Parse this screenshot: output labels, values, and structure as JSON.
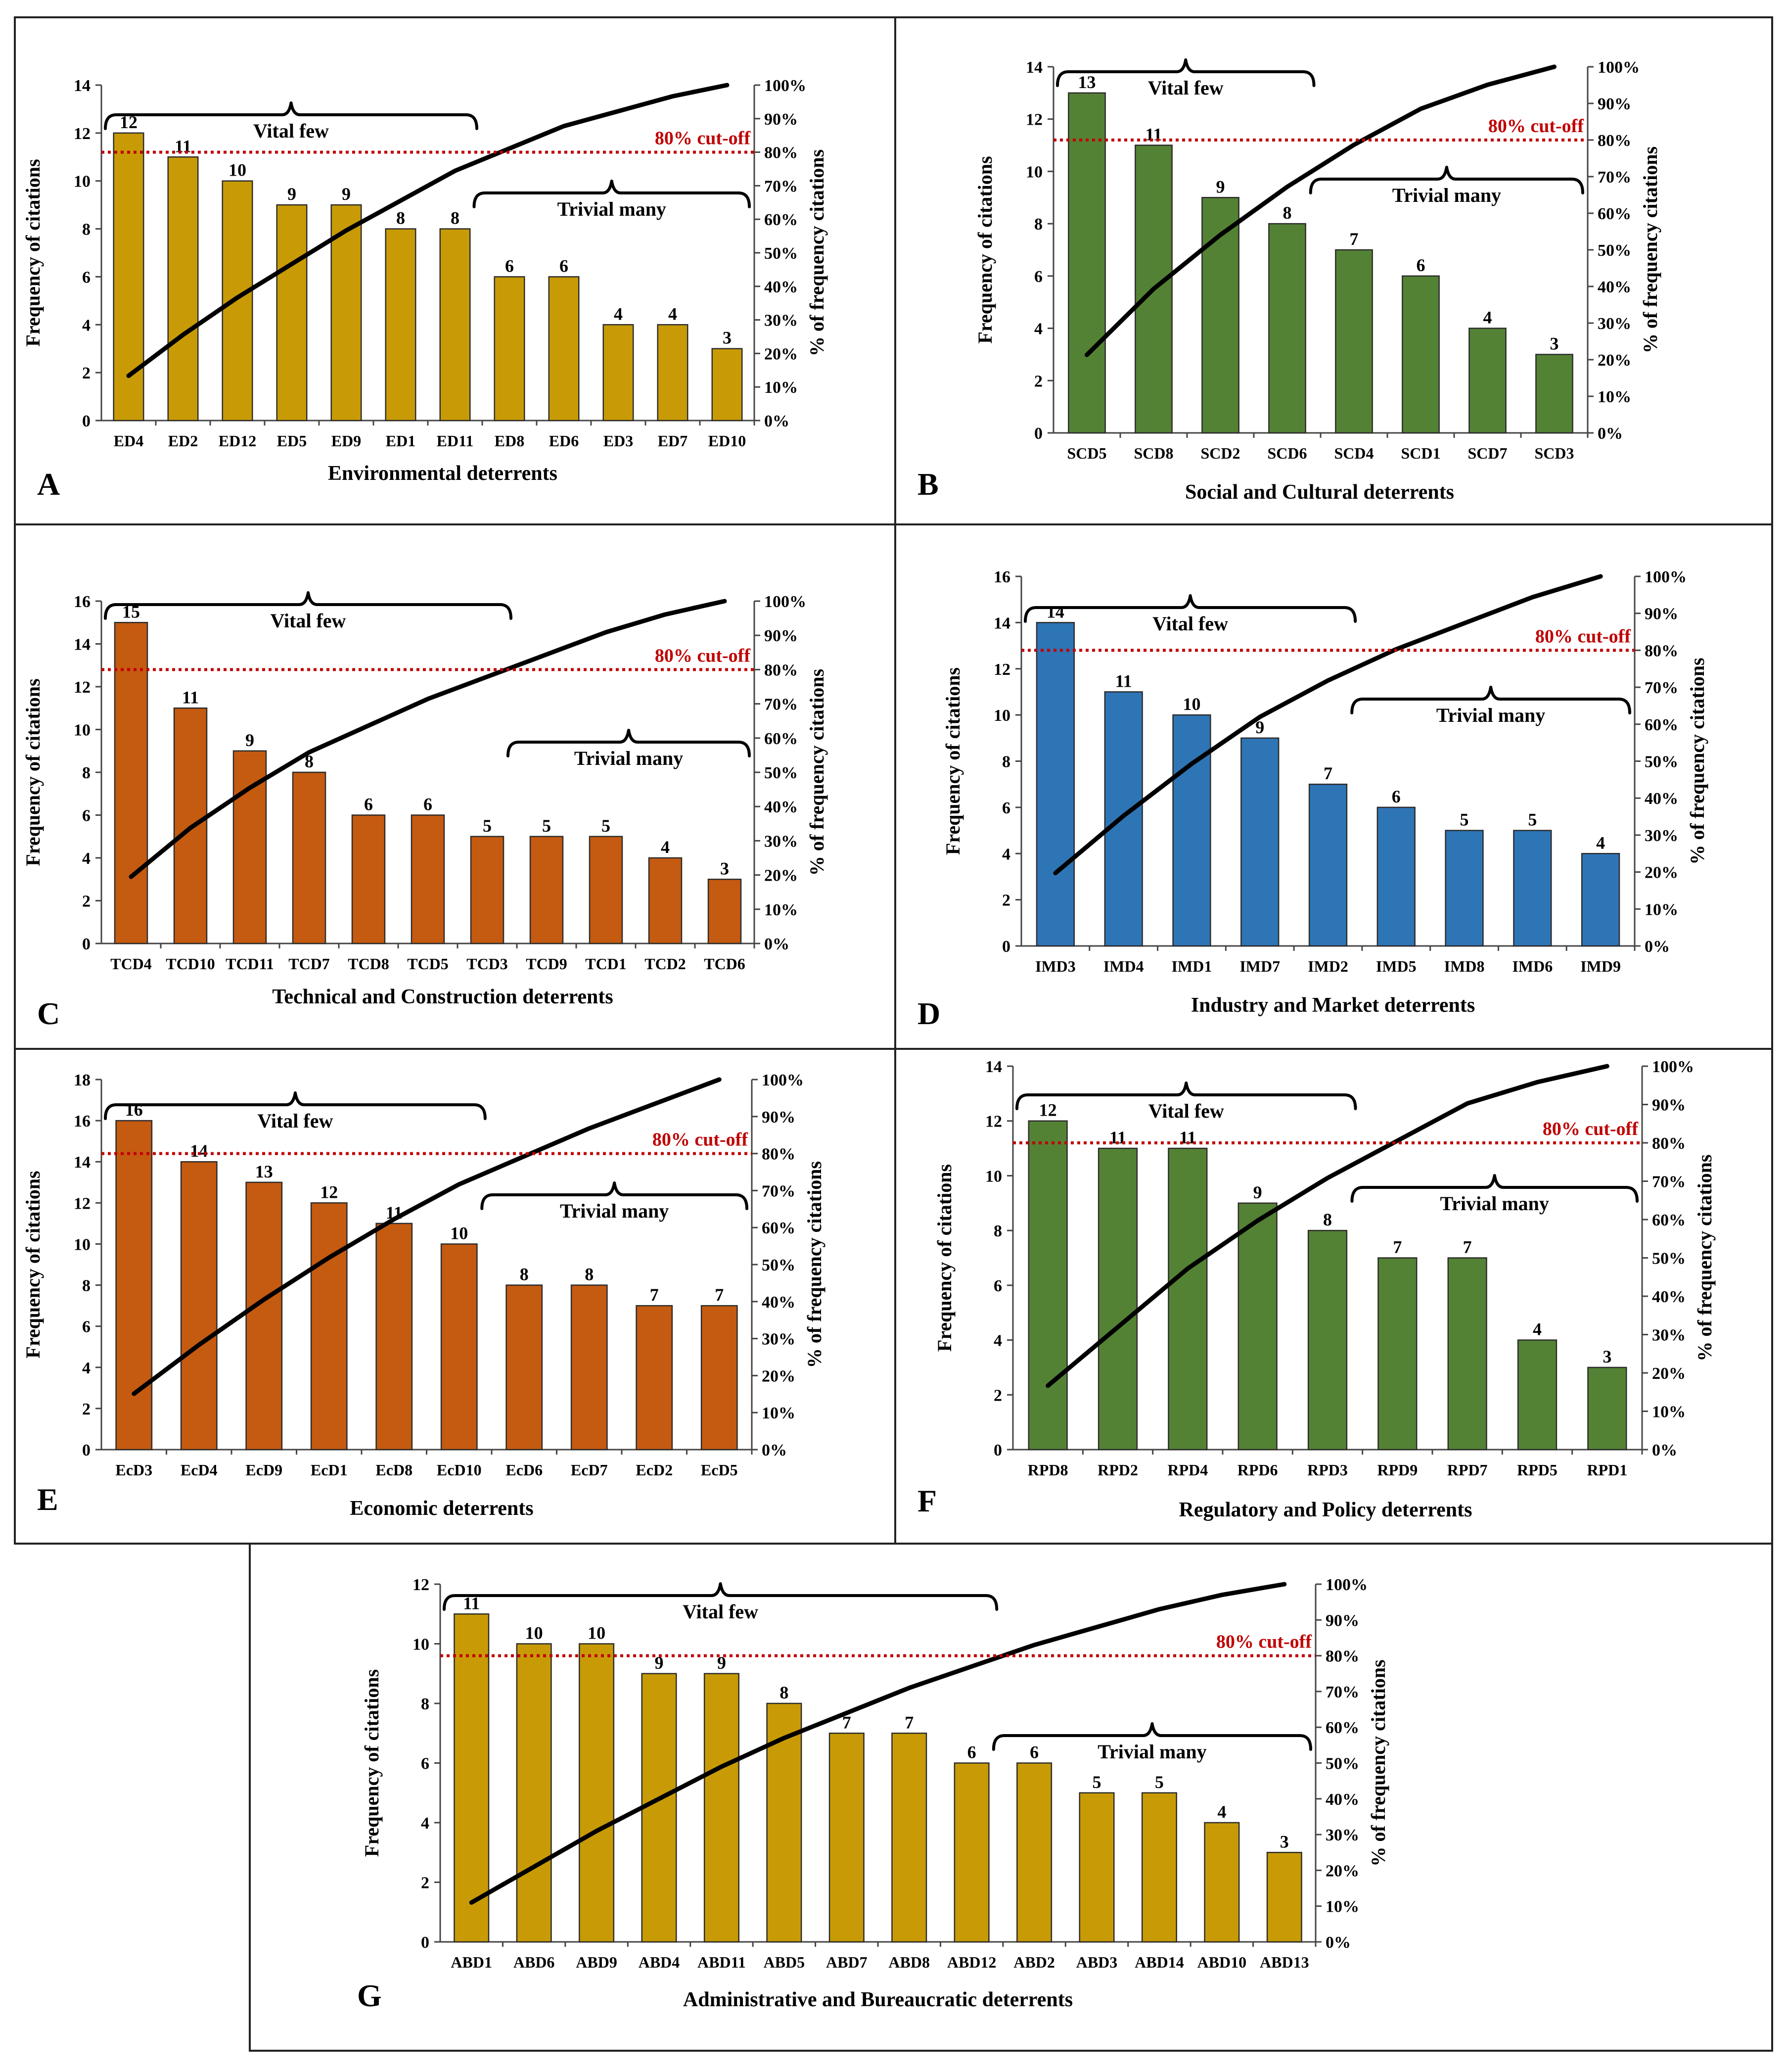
{
  "colors": {
    "gold": "#C89B06",
    "green": "#548235",
    "orange": "#C55A11",
    "blue": "#2E75B6",
    "cutoff": "#C00000"
  },
  "chart_data": [
    {
      "type": "bar",
      "panel_letter": "A",
      "title": "",
      "xlabel": "Environmental deterrents",
      "ylabel": "Frequency of citations",
      "y2label": "% of frequency citations",
      "categories": [
        "ED4",
        "ED2",
        "ED12",
        "ED5",
        "ED9",
        "ED1",
        "ED11",
        "ED8",
        "ED6",
        "ED3",
        "ED7",
        "ED10"
      ],
      "values": [
        12,
        11,
        10,
        9,
        9,
        8,
        8,
        6,
        6,
        4,
        4,
        3
      ],
      "value_labels": [
        "12",
        "11",
        "10",
        "9",
        "9",
        "8",
        "8",
        "6",
        "6",
        "4",
        "4",
        "3"
      ],
      "ylim": [
        0,
        14
      ],
      "yticks": [
        "0",
        "2",
        "4",
        "6",
        "8",
        "10",
        "12",
        "14"
      ],
      "y2ticks": [
        "0%",
        "10%",
        "20%",
        "30%",
        "40%",
        "50%",
        "60%",
        "70%",
        "80%",
        "90%",
        "100%"
      ],
      "cutoff_label": "80% cut-off",
      "cutoff_value": 80,
      "vital_label": "Vital few",
      "trivial_label": "Trivial many",
      "vital_span": [
        0,
        6
      ],
      "trivial_span": [
        7,
        11
      ],
      "color": "gold"
    },
    {
      "type": "bar",
      "panel_letter": "B",
      "title": "",
      "xlabel": "Social and Cultural deterrents",
      "ylabel": "Frequency of citations",
      "y2label": "% of frequency citations",
      "categories": [
        "SCD5",
        "SCD8",
        "SCD2",
        "SCD6",
        "SCD4",
        "SCD1",
        "SCD7",
        "SCD3"
      ],
      "values": [
        13,
        11,
        9,
        8,
        7,
        6,
        4,
        3
      ],
      "value_labels": [
        "13",
        "11",
        "9",
        "8",
        "7",
        "6",
        "4",
        "3"
      ],
      "ylim": [
        0,
        14
      ],
      "yticks": [
        "0",
        "2",
        "4",
        "6",
        "8",
        "10",
        "12",
        "14"
      ],
      "y2ticks": [
        "0%",
        "10%",
        "20%",
        "30%",
        "40%",
        "50%",
        "60%",
        "70%",
        "80%",
        "90%",
        "100%"
      ],
      "cutoff_label": "80% cut-off",
      "cutoff_value": 80,
      "vital_label": "Vital few",
      "trivial_label": "Trivial many",
      "vital_span": [
        0,
        3
      ],
      "trivial_span": [
        4,
        7
      ],
      "color": "green"
    },
    {
      "type": "bar",
      "panel_letter": "C",
      "title": "",
      "xlabel": "Technical and Construction deterrents",
      "ylabel": "Frequency of citations",
      "y2label": "% of frequency citations",
      "categories": [
        "TCD4",
        "TCD10",
        "TCD11",
        "TCD7",
        "TCD8",
        "TCD5",
        "TCD3",
        "TCD9",
        "TCD1",
        "TCD2",
        "TCD6"
      ],
      "values": [
        15,
        11,
        9,
        8,
        6,
        6,
        5,
        5,
        5,
        4,
        3
      ],
      "value_labels": [
        "15",
        "11",
        "9",
        "8",
        "6",
        "6",
        "5",
        "5",
        "5",
        "4",
        "3"
      ],
      "ylim": [
        0,
        16
      ],
      "yticks": [
        "0",
        "2",
        "4",
        "6",
        "8",
        "10",
        "12",
        "14",
        "16"
      ],
      "y2ticks": [
        "0%",
        "10%",
        "20%",
        "30%",
        "40%",
        "50%",
        "60%",
        "70%",
        "80%",
        "90%",
        "100%"
      ],
      "cutoff_label": "80% cut-off",
      "cutoff_value": 80,
      "vital_label": "Vital few",
      "trivial_label": "Trivial many",
      "vital_span": [
        0,
        6
      ],
      "trivial_span": [
        7,
        10
      ],
      "color": "orange"
    },
    {
      "type": "bar",
      "panel_letter": "D",
      "title": "",
      "xlabel": "Industry and Market deterrents",
      "ylabel": "Frequency of citations",
      "y2label": "% of frequency citations",
      "categories": [
        "IMD3",
        "IMD4",
        "IMD1",
        "IMD7",
        "IMD2",
        "IMD5",
        "IMD8",
        "IMD6",
        "IMD9"
      ],
      "values": [
        14,
        11,
        10,
        9,
        7,
        6,
        5,
        5,
        4
      ],
      "value_labels": [
        "14",
        "11",
        "10",
        "9",
        "7",
        "6",
        "5",
        "5",
        "4"
      ],
      "ylim": [
        0,
        16
      ],
      "yticks": [
        "0",
        "2",
        "4",
        "6",
        "8",
        "10",
        "12",
        "14",
        "16"
      ],
      "y2ticks": [
        "0%",
        "10%",
        "20%",
        "30%",
        "40%",
        "50%",
        "60%",
        "70%",
        "80%",
        "90%",
        "100%"
      ],
      "cutoff_label": "80% cut-off",
      "cutoff_value": 80,
      "vital_label": "Vital few",
      "trivial_label": "Trivial many",
      "vital_span": [
        0,
        4
      ],
      "trivial_span": [
        5,
        8
      ],
      "color": "blue"
    },
    {
      "type": "bar",
      "panel_letter": "E",
      "title": "",
      "xlabel": "Economic deterrents",
      "ylabel": "Frequency of citations",
      "y2label": "% of frequency citations",
      "categories": [
        "EcD3",
        "EcD4",
        "EcD9",
        "EcD1",
        "EcD8",
        "EcD10",
        "EcD6",
        "EcD7",
        "EcD2",
        "EcD5"
      ],
      "values": [
        16,
        14,
        13,
        12,
        11,
        10,
        8,
        8,
        7,
        7
      ],
      "value_labels": [
        "16",
        "14",
        "13",
        "12",
        "11",
        "10",
        "8",
        "8",
        "7",
        "7"
      ],
      "ylim": [
        0,
        18
      ],
      "yticks": [
        "0",
        "2",
        "4",
        "6",
        "8",
        "10",
        "12",
        "14",
        "16",
        "18"
      ],
      "y2ticks": [
        "0%",
        "10%",
        "20%",
        "30%",
        "40%",
        "50%",
        "60%",
        "70%",
        "80%",
        "90%",
        "100%"
      ],
      "cutoff_label": "80% cut-off",
      "cutoff_value": 80,
      "vital_label": "Vital few",
      "trivial_label": "Trivial many",
      "vital_span": [
        0,
        5
      ],
      "trivial_span": [
        6,
        9
      ],
      "color": "orange"
    },
    {
      "type": "bar",
      "panel_letter": "F",
      "title": "",
      "xlabel": "Regulatory and Policy deterrents",
      "ylabel": "Frequency of citations",
      "y2label": "% of frequency citations",
      "categories": [
        "RPD8",
        "RPD2",
        "RPD4",
        "RPD6",
        "RPD3",
        "RPD9",
        "RPD7",
        "RPD5",
        "RPD1"
      ],
      "values": [
        12,
        11,
        11,
        9,
        8,
        7,
        7,
        4,
        3
      ],
      "value_labels": [
        "12",
        "11",
        "11",
        "9",
        "8",
        "7",
        "7",
        "4",
        "3"
      ],
      "ylim": [
        0,
        14
      ],
      "yticks": [
        "0",
        "2",
        "4",
        "6",
        "8",
        "10",
        "12",
        "14"
      ],
      "y2ticks": [
        "0%",
        "10%",
        "20%",
        "30%",
        "40%",
        "50%",
        "60%",
        "70%",
        "80%",
        "90%",
        "100%"
      ],
      "cutoff_label": "80% cut-off",
      "cutoff_value": 80,
      "vital_label": "Vital few",
      "trivial_label": "Trivial many",
      "vital_span": [
        0,
        4
      ],
      "trivial_span": [
        5,
        8
      ],
      "color": "green"
    },
    {
      "type": "bar",
      "panel_letter": "G",
      "title": "",
      "xlabel": "Administrative and Bureaucratic deterrents",
      "ylabel": "Frequency of citations",
      "y2label": "% of frequency citations",
      "categories": [
        "ABD1",
        "ABD6",
        "ABD9",
        "ABD4",
        "ABD11",
        "ABD5",
        "ABD7",
        "ABD8",
        "ABD12",
        "ABD2",
        "ABD3",
        "ABD14",
        "ABD10",
        "ABD13"
      ],
      "values": [
        11,
        10,
        10,
        9,
        9,
        8,
        7,
        7,
        6,
        6,
        5,
        5,
        4,
        3
      ],
      "value_labels": [
        "11",
        "10",
        "10",
        "9",
        "9",
        "8",
        "7",
        "7",
        "6",
        "6",
        "5",
        "5",
        "4",
        "3"
      ],
      "ylim": [
        0,
        12
      ],
      "yticks": [
        "0",
        "2",
        "4",
        "6",
        "8",
        "10",
        "12"
      ],
      "y2ticks": [
        "0%",
        "10%",
        "20%",
        "30%",
        "40%",
        "50%",
        "60%",
        "70%",
        "80%",
        "90%",
        "100%"
      ],
      "cutoff_label": "80% cut-off",
      "cutoff_value": 80,
      "vital_label": "Vital few",
      "trivial_label": "Trivial many",
      "vital_span": [
        0,
        8
      ],
      "trivial_span": [
        9,
        13
      ],
      "color": "gold"
    }
  ]
}
